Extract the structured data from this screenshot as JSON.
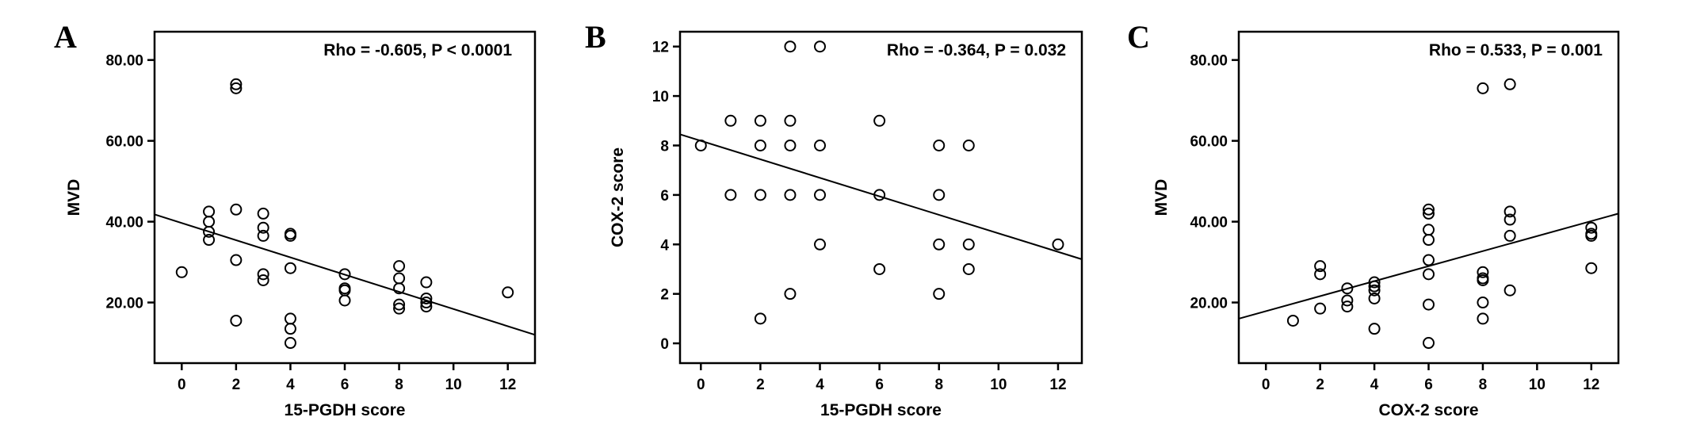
{
  "chart_data": [
    {
      "panel": "A",
      "type": "scatter",
      "annotation": "Rho = -0.605, P < 0.0001",
      "xlabel": "15-PGDH score",
      "ylabel": "MVD",
      "xlim": [
        -1,
        13
      ],
      "ylim": [
        5,
        87
      ],
      "xticks": [
        0,
        2,
        4,
        6,
        8,
        10,
        12
      ],
      "xtick_labels": [
        "0",
        "2",
        "4",
        "6",
        "8",
        "10",
        "12"
      ],
      "yticks": [
        20,
        40,
        60,
        80
      ],
      "ytick_labels": [
        "20.00",
        "40.00",
        "60.00",
        "80.00"
      ],
      "grid": false,
      "points": [
        [
          0,
          27.5
        ],
        [
          1,
          42.5
        ],
        [
          1,
          40
        ],
        [
          1,
          37.5
        ],
        [
          1,
          35.5
        ],
        [
          2,
          74
        ],
        [
          2,
          73
        ],
        [
          2,
          43
        ],
        [
          2,
          30.5
        ],
        [
          2,
          15.5
        ],
        [
          3,
          42
        ],
        [
          3,
          38.5
        ],
        [
          3,
          36.5
        ],
        [
          3,
          27
        ],
        [
          3,
          25.5
        ],
        [
          4,
          37
        ],
        [
          4,
          36.5
        ],
        [
          4,
          28.5
        ],
        [
          4,
          16
        ],
        [
          4,
          13.5
        ],
        [
          4,
          10
        ],
        [
          6,
          27
        ],
        [
          6,
          23.5
        ],
        [
          6,
          23
        ],
        [
          6,
          20.5
        ],
        [
          8,
          29
        ],
        [
          8,
          26
        ],
        [
          8,
          23.5
        ],
        [
          8,
          19.5
        ],
        [
          8,
          18.5
        ],
        [
          9,
          25
        ],
        [
          9,
          21
        ],
        [
          9,
          20
        ],
        [
          9,
          19
        ],
        [
          12,
          22.5
        ]
      ],
      "fit_line": {
        "x": [
          -1,
          13
        ],
        "y": [
          41.8,
          12
        ]
      }
    },
    {
      "panel": "B",
      "type": "scatter",
      "annotation": "Rho = -0.364, P = 0.032",
      "xlabel": "15-PGDH score",
      "ylabel": "COX-2 score",
      "xlim": [
        -0.7,
        12.8
      ],
      "ylim": [
        -0.8,
        12.6
      ],
      "xticks": [
        0,
        2,
        4,
        6,
        8,
        10,
        12
      ],
      "xtick_labels": [
        "0",
        "2",
        "4",
        "6",
        "8",
        "10",
        "12"
      ],
      "yticks": [
        0,
        2,
        4,
        6,
        8,
        10,
        12
      ],
      "ytick_labels": [
        "0",
        "2",
        "4",
        "6",
        "8",
        "10",
        "12"
      ],
      "grid": false,
      "points": [
        [
          0,
          8
        ],
        [
          1,
          9
        ],
        [
          1,
          6
        ],
        [
          2,
          9
        ],
        [
          2,
          8
        ],
        [
          2,
          6
        ],
        [
          2,
          1
        ],
        [
          3,
          12
        ],
        [
          3,
          9
        ],
        [
          3,
          8
        ],
        [
          3,
          6
        ],
        [
          3,
          2
        ],
        [
          4,
          12
        ],
        [
          4,
          8
        ],
        [
          4,
          6
        ],
        [
          4,
          4
        ],
        [
          6,
          9
        ],
        [
          6,
          6
        ],
        [
          6,
          3
        ],
        [
          8,
          8
        ],
        [
          8,
          6
        ],
        [
          8,
          4
        ],
        [
          8,
          2
        ],
        [
          9,
          8
        ],
        [
          9,
          4
        ],
        [
          9,
          3
        ],
        [
          12,
          4
        ]
      ],
      "fit_line": {
        "x": [
          -0.7,
          12.8
        ],
        "y": [
          8.45,
          3.4
        ]
      }
    },
    {
      "panel": "C",
      "type": "scatter",
      "annotation": "Rho = 0.533, P = 0.001",
      "xlabel": "COX-2 score",
      "ylabel": "MVD",
      "xlim": [
        -1,
        13
      ],
      "ylim": [
        5,
        87
      ],
      "xticks": [
        0,
        2,
        4,
        6,
        8,
        10,
        12
      ],
      "xtick_labels": [
        "0",
        "2",
        "4",
        "6",
        "8",
        "10",
        "12"
      ],
      "yticks": [
        20,
        40,
        60,
        80
      ],
      "ytick_labels": [
        "20.00",
        "40.00",
        "60.00",
        "80.00"
      ],
      "grid": false,
      "points": [
        [
          1,
          15.5
        ],
        [
          2,
          29
        ],
        [
          2,
          27
        ],
        [
          2,
          18.5
        ],
        [
          3,
          23.5
        ],
        [
          3,
          20.5
        ],
        [
          3,
          19
        ],
        [
          4,
          25
        ],
        [
          4,
          24
        ],
        [
          4,
          23
        ],
        [
          4,
          21
        ],
        [
          4,
          13.5
        ],
        [
          6,
          43
        ],
        [
          6,
          42
        ],
        [
          6,
          38
        ],
        [
          6,
          35.5
        ],
        [
          6,
          30.5
        ],
        [
          6,
          27
        ],
        [
          6,
          19.5
        ],
        [
          6,
          10
        ],
        [
          8,
          73
        ],
        [
          8,
          27.5
        ],
        [
          8,
          26
        ],
        [
          8,
          25.5
        ],
        [
          8,
          20
        ],
        [
          8,
          16
        ],
        [
          9,
          74
        ],
        [
          9,
          42.5
        ],
        [
          9,
          40.5
        ],
        [
          9,
          36.5
        ],
        [
          9,
          23
        ],
        [
          12,
          38.5
        ],
        [
          12,
          37
        ],
        [
          12,
          36.5
        ],
        [
          12,
          28.5
        ]
      ],
      "fit_line": {
        "x": [
          -1,
          13
        ],
        "y": [
          16,
          42
        ]
      }
    }
  ]
}
